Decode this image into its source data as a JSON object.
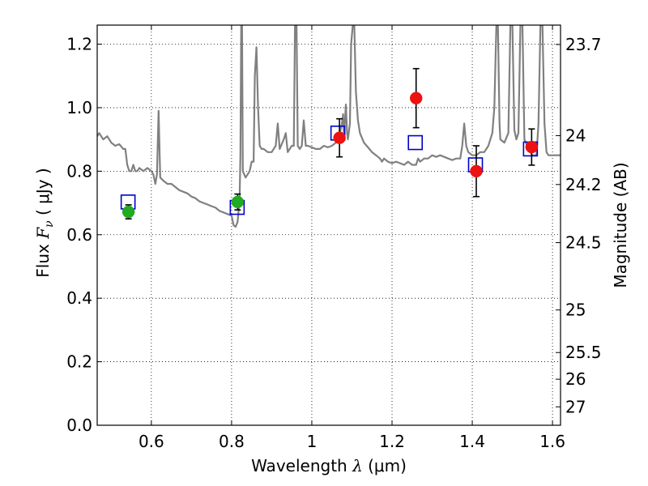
{
  "chart_data": {
    "type": "scatter",
    "title": "",
    "xlabel_prefix": "Wavelength  ",
    "xlabel_symbol": "λ",
    "xlabel_unit": " (μm)",
    "ylabel_prefix": "Flux  ",
    "ylabel_symbol": "F",
    "ylabel_sub": "ν",
    "ylabel_unit": "  ( μJy )",
    "y2label": "Magnitude (AB)",
    "xlim": [
      0.465,
      1.62
    ],
    "ylim": [
      0.0,
      1.26
    ],
    "grid": true,
    "grid_style": "dotted",
    "x_ticks": [
      {
        "value": 0.6,
        "label": "0.6"
      },
      {
        "value": 0.8,
        "label": "0.8"
      },
      {
        "value": 1.0,
        "label": "1"
      },
      {
        "value": 1.2,
        "label": "1.2"
      },
      {
        "value": 1.4,
        "label": "1.4"
      },
      {
        "value": 1.6,
        "label": "1.6"
      }
    ],
    "y_ticks": [
      {
        "value": 0.0,
        "label": "0.0"
      },
      {
        "value": 0.2,
        "label": "0.2"
      },
      {
        "value": 0.4,
        "label": "0.4"
      },
      {
        "value": 0.6,
        "label": "0.6"
      },
      {
        "value": 0.8,
        "label": "0.8"
      },
      {
        "value": 1.0,
        "label": "1.0"
      },
      {
        "value": 1.2,
        "label": "1.2"
      }
    ],
    "y2_ticks": [
      {
        "flux": 1.199,
        "label": "23.7"
      },
      {
        "flux": 0.912,
        "label": "24"
      },
      {
        "flux": 0.758,
        "label": "24.2"
      },
      {
        "flux": 0.575,
        "label": "24.5"
      },
      {
        "flux": 0.363,
        "label": "25"
      },
      {
        "flux": 0.229,
        "label": "25.5"
      },
      {
        "flux": 0.145,
        "label": "26"
      },
      {
        "flux": 0.058,
        "label": "27"
      }
    ],
    "series": [
      {
        "kind": "line",
        "color": "#808080",
        "points": [
          [
            0.465,
            0.91
          ],
          [
            0.47,
            0.92
          ],
          [
            0.48,
            0.9
          ],
          [
            0.49,
            0.91
          ],
          [
            0.5,
            0.89
          ],
          [
            0.51,
            0.88
          ],
          [
            0.52,
            0.885
          ],
          [
            0.53,
            0.87
          ],
          [
            0.535,
            0.87
          ],
          [
            0.54,
            0.82
          ],
          [
            0.545,
            0.8
          ],
          [
            0.55,
            0.8
          ],
          [
            0.555,
            0.82
          ],
          [
            0.56,
            0.8
          ],
          [
            0.565,
            0.8
          ],
          [
            0.57,
            0.81
          ],
          [
            0.58,
            0.8
          ],
          [
            0.59,
            0.81
          ],
          [
            0.6,
            0.8
          ],
          [
            0.605,
            0.79
          ],
          [
            0.61,
            0.76
          ],
          [
            0.614,
            0.79
          ],
          [
            0.618,
            0.99
          ],
          [
            0.622,
            0.78
          ],
          [
            0.63,
            0.77
          ],
          [
            0.64,
            0.76
          ],
          [
            0.65,
            0.76
          ],
          [
            0.66,
            0.75
          ],
          [
            0.67,
            0.74
          ],
          [
            0.68,
            0.735
          ],
          [
            0.69,
            0.73
          ],
          [
            0.7,
            0.72
          ],
          [
            0.71,
            0.715
          ],
          [
            0.72,
            0.705
          ],
          [
            0.73,
            0.7
          ],
          [
            0.74,
            0.695
          ],
          [
            0.75,
            0.69
          ],
          [
            0.76,
            0.685
          ],
          [
            0.77,
            0.675
          ],
          [
            0.78,
            0.67
          ],
          [
            0.79,
            0.665
          ],
          [
            0.8,
            0.66
          ],
          [
            0.805,
            0.63
          ],
          [
            0.81,
            0.625
          ],
          [
            0.815,
            0.64
          ],
          [
            0.82,
            0.71
          ],
          [
            0.822,
            0.85
          ],
          [
            0.824,
            1.26
          ],
          [
            0.826,
            1.26
          ],
          [
            0.828,
            0.8
          ],
          [
            0.835,
            0.78
          ],
          [
            0.84,
            0.79
          ],
          [
            0.845,
            0.8
          ],
          [
            0.85,
            0.83
          ],
          [
            0.855,
            0.83
          ],
          [
            0.858,
            1.1
          ],
          [
            0.862,
            1.19
          ],
          [
            0.866,
            1.0
          ],
          [
            0.87,
            0.88
          ],
          [
            0.875,
            0.87
          ],
          [
            0.88,
            0.87
          ],
          [
            0.89,
            0.86
          ],
          [
            0.9,
            0.86
          ],
          [
            0.91,
            0.88
          ],
          [
            0.915,
            0.95
          ],
          [
            0.92,
            0.87
          ],
          [
            0.93,
            0.9
          ],
          [
            0.935,
            0.92
          ],
          [
            0.94,
            0.86
          ],
          [
            0.95,
            0.88
          ],
          [
            0.955,
            0.88
          ],
          [
            0.958,
            1.26
          ],
          [
            0.962,
            1.26
          ],
          [
            0.965,
            0.88
          ],
          [
            0.97,
            0.87
          ],
          [
            0.975,
            0.88
          ],
          [
            0.98,
            0.96
          ],
          [
            0.985,
            0.88
          ],
          [
            0.99,
            0.88
          ],
          [
            1.0,
            0.875
          ],
          [
            1.01,
            0.87
          ],
          [
            1.02,
            0.87
          ],
          [
            1.03,
            0.88
          ],
          [
            1.04,
            0.875
          ],
          [
            1.05,
            0.88
          ],
          [
            1.06,
            0.89
          ],
          [
            1.07,
            0.92
          ],
          [
            1.075,
            0.95
          ],
          [
            1.078,
            0.98
          ],
          [
            1.08,
            0.9
          ],
          [
            1.085,
            1.01
          ],
          [
            1.088,
            0.92
          ],
          [
            1.09,
            0.9
          ],
          [
            1.095,
            0.95
          ],
          [
            1.098,
            1.2
          ],
          [
            1.102,
            1.26
          ],
          [
            1.106,
            1.26
          ],
          [
            1.11,
            1.05
          ],
          [
            1.115,
            0.96
          ],
          [
            1.12,
            0.92
          ],
          [
            1.13,
            0.89
          ],
          [
            1.14,
            0.875
          ],
          [
            1.15,
            0.86
          ],
          [
            1.16,
            0.85
          ],
          [
            1.17,
            0.84
          ],
          [
            1.175,
            0.83
          ],
          [
            1.18,
            0.84
          ],
          [
            1.19,
            0.83
          ],
          [
            1.2,
            0.825
          ],
          [
            1.21,
            0.83
          ],
          [
            1.22,
            0.825
          ],
          [
            1.23,
            0.82
          ],
          [
            1.24,
            0.83
          ],
          [
            1.25,
            0.82
          ],
          [
            1.26,
            0.82
          ],
          [
            1.265,
            0.84
          ],
          [
            1.27,
            0.83
          ],
          [
            1.28,
            0.84
          ],
          [
            1.29,
            0.84
          ],
          [
            1.3,
            0.85
          ],
          [
            1.31,
            0.845
          ],
          [
            1.32,
            0.85
          ],
          [
            1.33,
            0.845
          ],
          [
            1.34,
            0.84
          ],
          [
            1.35,
            0.835
          ],
          [
            1.36,
            0.84
          ],
          [
            1.37,
            0.84
          ],
          [
            1.375,
            0.88
          ],
          [
            1.38,
            0.95
          ],
          [
            1.385,
            0.88
          ],
          [
            1.39,
            0.86
          ],
          [
            1.4,
            0.85
          ],
          [
            1.41,
            0.85
          ],
          [
            1.42,
            0.86
          ],
          [
            1.43,
            0.86
          ],
          [
            1.44,
            0.88
          ],
          [
            1.45,
            0.92
          ],
          [
            1.455,
            1.0
          ],
          [
            1.46,
            1.26
          ],
          [
            1.464,
            1.26
          ],
          [
            1.468,
            0.95
          ],
          [
            1.47,
            0.9
          ],
          [
            1.48,
            0.89
          ],
          [
            1.49,
            0.92
          ],
          [
            1.495,
            1.26
          ],
          [
            1.5,
            1.26
          ],
          [
            1.505,
            0.93
          ],
          [
            1.51,
            0.9
          ],
          [
            1.515,
            0.92
          ],
          [
            1.52,
            1.26
          ],
          [
            1.525,
            1.26
          ],
          [
            1.53,
            0.9
          ],
          [
            1.54,
            0.87
          ],
          [
            1.55,
            0.85
          ],
          [
            1.56,
            0.85
          ],
          [
            1.565,
            0.95
          ],
          [
            1.57,
            1.26
          ],
          [
            1.575,
            1.26
          ],
          [
            1.58,
            0.95
          ],
          [
            1.585,
            0.86
          ],
          [
            1.59,
            0.85
          ],
          [
            1.6,
            0.85
          ],
          [
            1.61,
            0.85
          ],
          [
            1.62,
            0.85
          ]
        ]
      },
      {
        "kind": "open-square",
        "color": "#0000cc",
        "points": [
          [
            0.542,
            0.703
          ],
          [
            0.814,
            0.686
          ],
          [
            1.065,
            0.92
          ],
          [
            1.258,
            0.89
          ],
          [
            1.408,
            0.82
          ],
          [
            1.545,
            0.87
          ]
        ]
      },
      {
        "kind": "filled-circle",
        "color": "#22aa22",
        "points": [
          {
            "x": 0.543,
            "y": 0.672,
            "err": 0.022
          },
          {
            "x": 0.815,
            "y": 0.703,
            "err": 0.025
          }
        ]
      },
      {
        "kind": "filled-circle",
        "color": "#ee1111",
        "points": [
          {
            "x": 1.069,
            "y": 0.905,
            "err": 0.06
          },
          {
            "x": 1.26,
            "y": 1.03,
            "err": 0.093
          },
          {
            "x": 1.41,
            "y": 0.8,
            "err": 0.08
          },
          {
            "x": 1.548,
            "y": 0.876,
            "err": 0.057
          }
        ]
      }
    ]
  }
}
